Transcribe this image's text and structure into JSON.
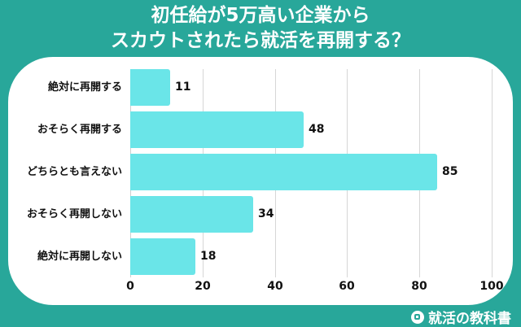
{
  "title": {
    "line1": "初任給が5万高い企業から",
    "line2": "スカウトされたら就活を再開する？"
  },
  "brand": {
    "label": "就活の教科書",
    "icon": "notebook-icon"
  },
  "colors": {
    "background": "#28a79a",
    "bar": "#6ae5e8",
    "panel": "#ffffff"
  },
  "chart_data": {
    "type": "bar",
    "orientation": "horizontal",
    "title": "初任給が5万高い企業からスカウトされたら就活を再開する？",
    "categories": [
      "絶対に再開する",
      "おそらく再開する",
      "どちらとも言えない",
      "おそらく再開しない",
      "絶対に再開しない"
    ],
    "values": [
      11,
      48,
      85,
      34,
      18
    ],
    "xlabel": "",
    "ylabel": "",
    "xlim": [
      0,
      100
    ],
    "xticks": [
      "0",
      "20",
      "40",
      "60",
      "80",
      "100"
    ],
    "grid": true,
    "legend": null,
    "data_labels": [
      "11",
      "48",
      "85",
      "34",
      "18"
    ]
  }
}
